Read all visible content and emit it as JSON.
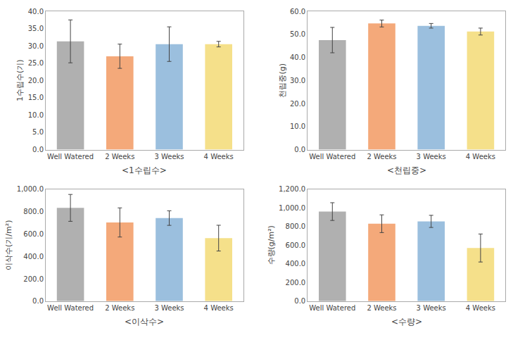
{
  "chart_data": [
    {
      "type": "bar",
      "title": "<1수립수>",
      "ylabel": "1수립수(기)",
      "categories": [
        "Well Watered",
        "2 Weeks",
        "3 Weeks",
        "4 Weeks"
      ],
      "values": [
        31.3,
        27.0,
        30.5,
        30.5
      ],
      "errors": [
        6.2,
        3.5,
        5.0,
        0.8
      ],
      "colors": [
        "#b0b0b0",
        "#f4a97a",
        "#9bbfde",
        "#f5e08a"
      ],
      "ylim": [
        0,
        40.0
      ],
      "yticks": [
        {
          "value": 0.0,
          "label": "0.0"
        },
        {
          "value": 5.0,
          "label": "5.0"
        },
        {
          "value": 10.0,
          "label": "10.0"
        },
        {
          "value": 15.0,
          "label": "15.0"
        },
        {
          "value": 20.0,
          "label": "20.0"
        },
        {
          "value": 25.0,
          "label": "25.0"
        },
        {
          "value": 30.0,
          "label": "30.0"
        },
        {
          "value": 35.0,
          "label": "35.0"
        },
        {
          "value": 40.0,
          "label": "40.0"
        }
      ],
      "grid": false
    },
    {
      "type": "bar",
      "title": "<천립중>",
      "ylabel": "천립중(g)",
      "categories": [
        "Well Watered",
        "2 Weeks",
        "3 Weeks",
        "4 Weeks"
      ],
      "values": [
        47.5,
        54.7,
        53.7,
        51.2
      ],
      "errors": [
        5.5,
        1.5,
        1.0,
        1.5
      ],
      "colors": [
        "#b0b0b0",
        "#f4a97a",
        "#9bbfde",
        "#f5e08a"
      ],
      "ylim": [
        0,
        60.0
      ],
      "yticks": [
        {
          "value": 0.0,
          "label": "0.0"
        },
        {
          "value": 10.0,
          "label": "10.0"
        },
        {
          "value": 20.0,
          "label": "20.0"
        },
        {
          "value": 30.0,
          "label": "30.0"
        },
        {
          "value": 40.0,
          "label": "40.0"
        },
        {
          "value": 50.0,
          "label": "50.0"
        },
        {
          "value": 60.0,
          "label": "60.0"
        }
      ],
      "grid": false
    },
    {
      "type": "bar",
      "title": "<이삭수>",
      "ylabel": "이삭수(기/m²)",
      "categories": [
        "Well Watered",
        "2 Weeks",
        "3 Weeks",
        "4 Weeks"
      ],
      "values": [
        833,
        703,
        742,
        563
      ],
      "errors": [
        120,
        130,
        65,
        115
      ],
      "colors": [
        "#b0b0b0",
        "#f4a97a",
        "#9bbfde",
        "#f5e08a"
      ],
      "ylim": [
        0,
        1000.0
      ],
      "yticks": [
        {
          "value": 0.0,
          "label": "0.0"
        },
        {
          "value": 200.0,
          "label": "200.0"
        },
        {
          "value": 400.0,
          "label": "400.0"
        },
        {
          "value": 600.0,
          "label": "600.0"
        },
        {
          "value": 800.0,
          "label": "800.0"
        },
        {
          "value": 1000.0,
          "label": "1,000.0"
        }
      ],
      "grid": false
    },
    {
      "type": "bar",
      "title": "<수량>",
      "ylabel": "수량(g/m²)",
      "categories": [
        "Well Watered",
        "2 Weeks",
        "3 Weeks",
        "4 Weeks"
      ],
      "values": [
        960,
        830,
        855,
        570
      ],
      "errors": [
        95,
        95,
        65,
        150
      ],
      "colors": [
        "#b0b0b0",
        "#f4a97a",
        "#9bbfde",
        "#f5e08a"
      ],
      "ylim": [
        0,
        1200.0
      ],
      "yticks": [
        {
          "value": 0.0,
          "label": "0.0"
        },
        {
          "value": 200.0,
          "label": "200.0"
        },
        {
          "value": 400.0,
          "label": "400.0"
        },
        {
          "value": 600.0,
          "label": "600.0"
        },
        {
          "value": 800.0,
          "label": "800.0"
        },
        {
          "value": 1000.0,
          "label": "1,000.0"
        },
        {
          "value": 1200.0,
          "label": "1,200.0"
        }
      ],
      "grid": false
    }
  ]
}
